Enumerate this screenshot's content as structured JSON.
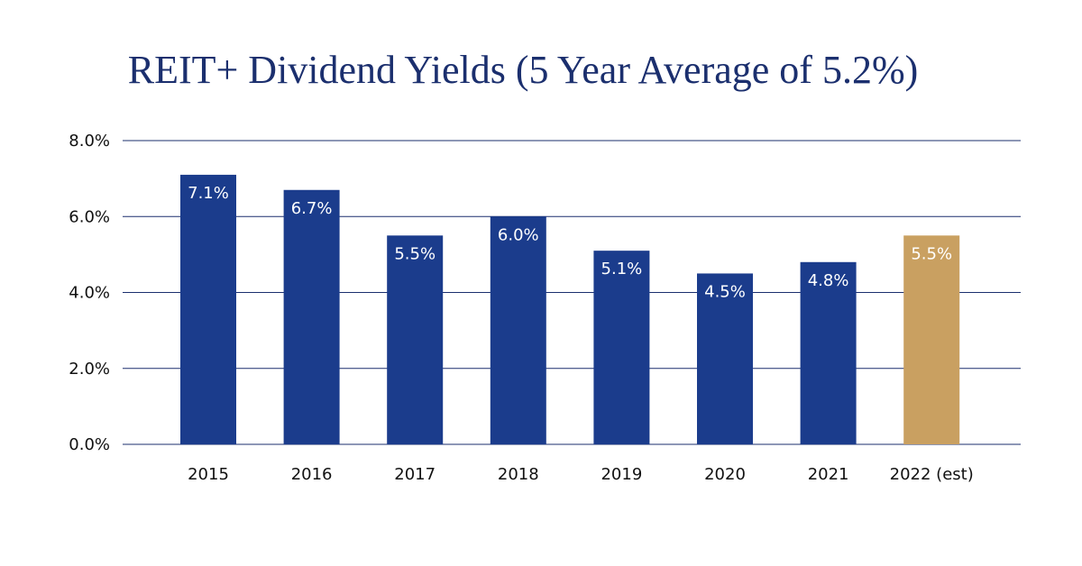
{
  "chart_data": {
    "type": "bar",
    "title": "REIT+ Dividend Yields (5 Year Average of 5.2%)",
    "xlabel": "",
    "ylabel": "",
    "categories": [
      "2015",
      "2016",
      "2017",
      "2018",
      "2019",
      "2020",
      "2021",
      "2022 (est)"
    ],
    "values": [
      7.1,
      6.7,
      5.5,
      6.0,
      5.1,
      4.5,
      4.8,
      5.5
    ],
    "data_labels": [
      "7.1%",
      "6.7%",
      "5.5%",
      "6.0%",
      "5.1%",
      "4.5%",
      "4.8%",
      "5.5%"
    ],
    "ylim": [
      0,
      8
    ],
    "yticks": [
      0,
      2,
      4,
      6,
      8
    ],
    "ytick_labels": [
      "0.0%",
      "2.0%",
      "4.0%",
      "6.0%",
      "8.0%"
    ],
    "grid": true,
    "legend": "none",
    "colors": {
      "bar": "#1b3c8c",
      "estimate_bar": "#c9a061",
      "grid": "#1b2f6e",
      "title": "#1b2f6e"
    },
    "estimate_categories": [
      "2022 (est)"
    ]
  }
}
